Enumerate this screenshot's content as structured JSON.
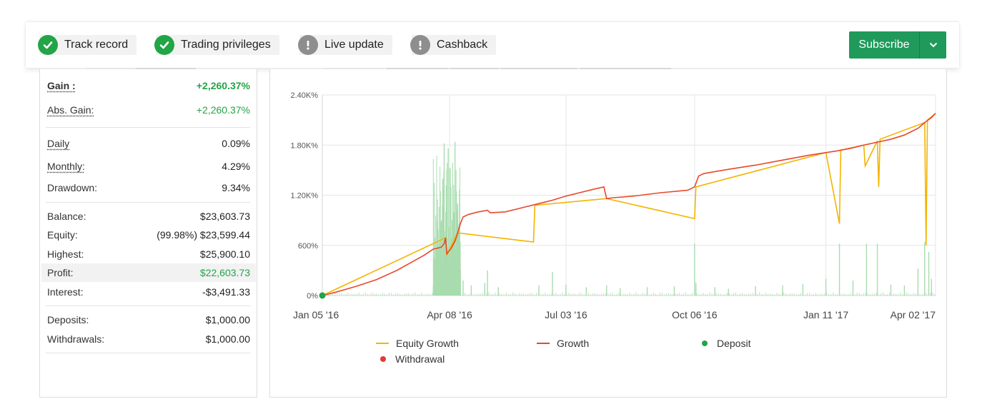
{
  "badges": [
    {
      "label": "Track record",
      "status": "ok",
      "icon": "checkmark-icon"
    },
    {
      "label": "Trading privileges",
      "status": "ok",
      "icon": "checkmark-icon"
    },
    {
      "label": "Live update",
      "status": "warning",
      "icon": "exclamation-icon"
    },
    {
      "label": "Cashback",
      "status": "warning",
      "icon": "exclamation-icon"
    }
  ],
  "subscribe": {
    "label": "Subscribe",
    "icon": "chevron-down-icon"
  },
  "stats": {
    "gain": {
      "label": "Gain :",
      "value": "+2,260.37%"
    },
    "abs_gain": {
      "label": "Abs. Gain:",
      "value": "+2,260.37%"
    },
    "daily": {
      "label": "Daily",
      "value": "0.09%"
    },
    "monthly": {
      "label": "Monthly:",
      "value": "4.29%"
    },
    "drawdown": {
      "label": "Drawdown:",
      "value": "9.34%"
    },
    "balance": {
      "label": "Balance:",
      "value": "$23,603.73"
    },
    "equity": {
      "label": "Equity:",
      "value": "(99.98%) $23,599.44"
    },
    "highest": {
      "label": "Highest:",
      "value": "$25,900.10"
    },
    "profit": {
      "label": "Profit:",
      "value": "$22,603.73"
    },
    "interest": {
      "label": "Interest:",
      "value": "-$3,491.33"
    },
    "deposits": {
      "label": "Deposits:",
      "value": "$1,000.00"
    },
    "withdrawals": {
      "label": "Withdrawals:",
      "value": "$1,000.00"
    }
  },
  "colors": {
    "accent_green": "#22a447",
    "subscribe_bg": "#1f9a5b",
    "growth_line": "#e8482c",
    "equity_line": "#f4b400",
    "volume_bars": "#a8dcae",
    "deposit_dot": "#22a447",
    "withdrawal_dot": "#e53935"
  },
  "chart_data": {
    "type": "line",
    "y_ticks": [
      "0%",
      "600%",
      "1.20K%",
      "1.80K%",
      "2.40K%"
    ],
    "y_tick_values": [
      0,
      600,
      1200,
      1800,
      2400
    ],
    "ylim": [
      0,
      2400
    ],
    "x_ticks": [
      "Jan 05 '16",
      "Apr 08 '16",
      "Jul 03 '16",
      "Oct 06 '16",
      "Jan 11 '17",
      "Apr 02 '17"
    ],
    "x_tick_days": [
      0,
      94,
      180,
      275,
      372,
      453
    ],
    "xlim_days": [
      0,
      453
    ],
    "legend": [
      {
        "name": "Equity Growth",
        "kind": "line",
        "color": "#f4b400"
      },
      {
        "name": "Growth",
        "kind": "line",
        "color": "#e8482c"
      },
      {
        "name": "Deposit",
        "kind": "dot",
        "color": "#22a447"
      },
      {
        "name": "Withdrawal",
        "kind": "dot",
        "color": "#e53935"
      }
    ],
    "series": [
      {
        "name": "Growth",
        "points": [
          [
            0,
            0
          ],
          [
            10,
            40
          ],
          [
            25,
            110
          ],
          [
            40,
            190
          ],
          [
            55,
            300
          ],
          [
            65,
            390
          ],
          [
            75,
            480
          ],
          [
            82,
            555
          ],
          [
            86,
            570
          ],
          [
            88,
            580
          ],
          [
            90,
            620
          ],
          [
            91,
            690
          ],
          [
            92,
            500
          ],
          [
            95,
            560
          ],
          [
            98,
            650
          ],
          [
            100,
            750
          ],
          [
            102,
            860
          ],
          [
            104,
            940
          ],
          [
            108,
            970
          ],
          [
            115,
            1000
          ],
          [
            122,
            1020
          ],
          [
            124,
            990
          ],
          [
            135,
            1000
          ],
          [
            145,
            1040
          ],
          [
            160,
            1100
          ],
          [
            170,
            1140
          ],
          [
            180,
            1190
          ],
          [
            190,
            1230
          ],
          [
            200,
            1270
          ],
          [
            208,
            1300
          ],
          [
            210,
            1160
          ],
          [
            215,
            1170
          ],
          [
            230,
            1190
          ],
          [
            250,
            1230
          ],
          [
            270,
            1260
          ],
          [
            275,
            1300
          ],
          [
            278,
            1430
          ],
          [
            282,
            1460
          ],
          [
            300,
            1510
          ],
          [
            320,
            1560
          ],
          [
            340,
            1620
          ],
          [
            360,
            1680
          ],
          [
            372,
            1710
          ],
          [
            380,
            1730
          ],
          [
            390,
            1760
          ],
          [
            400,
            1800
          ],
          [
            420,
            1870
          ],
          [
            430,
            1920
          ],
          [
            440,
            2000
          ],
          [
            445,
            2070
          ],
          [
            450,
            2130
          ],
          [
            453,
            2180
          ]
        ]
      },
      {
        "name": "Equity Growth",
        "points": [
          [
            0,
            0
          ],
          [
            91,
            690
          ],
          [
            92,
            480
          ],
          [
            93,
            520
          ],
          [
            100,
            750
          ],
          [
            156,
            640
          ],
          [
            157,
            1080
          ],
          [
            210,
            1160
          ],
          [
            275,
            920
          ],
          [
            276,
            1300
          ],
          [
            372,
            1710
          ],
          [
            382,
            860
          ],
          [
            383,
            1740
          ],
          [
            400,
            1800
          ],
          [
            401,
            1550
          ],
          [
            410,
            1850
          ],
          [
            411,
            1300
          ],
          [
            412,
            1870
          ],
          [
            445,
            2070
          ],
          [
            446,
            600
          ],
          [
            447,
            2100
          ],
          [
            453,
            2180
          ]
        ]
      },
      {
        "name": "Volume",
        "spikes": [
          [
            82,
            110
          ],
          [
            83,
            300
          ],
          [
            84,
            120
          ],
          [
            85,
            420
          ],
          [
            86,
            600
          ],
          [
            87,
            250
          ],
          [
            88,
            900
          ],
          [
            89,
            1400
          ],
          [
            90,
            1820
          ],
          [
            91,
            700
          ],
          [
            92,
            1500
          ],
          [
            93,
            1760
          ],
          [
            94,
            500
          ],
          [
            95,
            1300
          ],
          [
            96,
            900
          ],
          [
            97,
            1000
          ],
          [
            98,
            1840
          ],
          [
            99,
            600
          ],
          [
            100,
            1100
          ],
          [
            101,
            500
          ],
          [
            102,
            300
          ],
          [
            104,
            180
          ],
          [
            110,
            120
          ],
          [
            120,
            150
          ],
          [
            122,
            300
          ],
          [
            130,
            100
          ],
          [
            160,
            120
          ],
          [
            170,
            280
          ],
          [
            180,
            130
          ],
          [
            195,
            100
          ],
          [
            210,
            120
          ],
          [
            220,
            90
          ],
          [
            240,
            100
          ],
          [
            260,
            110
          ],
          [
            275,
            620
          ],
          [
            276,
            150
          ],
          [
            290,
            100
          ],
          [
            300,
            80
          ],
          [
            320,
            110
          ],
          [
            340,
            120
          ],
          [
            355,
            140
          ],
          [
            372,
            200
          ],
          [
            382,
            620
          ],
          [
            392,
            180
          ],
          [
            402,
            620
          ],
          [
            410,
            620
          ],
          [
            420,
            130
          ],
          [
            430,
            120
          ],
          [
            440,
            320
          ],
          [
            445,
            640
          ],
          [
            448,
            520
          ],
          [
            450,
            200
          ]
        ],
        "baseline": 40
      }
    ],
    "markers": [
      {
        "type": "Deposit",
        "x_day": 0,
        "y": 0
      }
    ]
  }
}
